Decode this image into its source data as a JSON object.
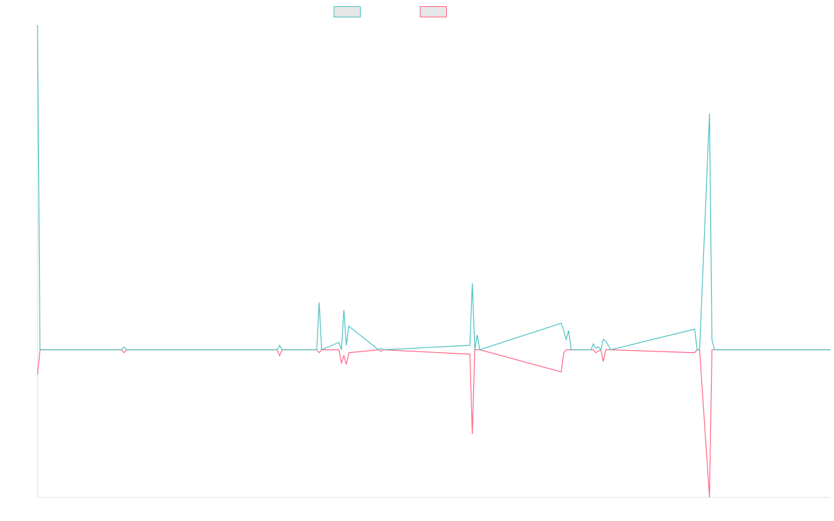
{
  "colors": {
    "series_a": "#4bc0c0",
    "series_b": "#ff6384",
    "axis": "#e0e0e0"
  },
  "chart_data": {
    "type": "line",
    "title": "",
    "xlabel": "",
    "ylabel": "",
    "grid": false,
    "legend_position": "top",
    "x": [
      0,
      1,
      34,
      35,
      36,
      97,
      98,
      99,
      113,
      114,
      115,
      122,
      123,
      124,
      125,
      126,
      138,
      139,
      140,
      175,
      176,
      177,
      178,
      179,
      212,
      213,
      214,
      215,
      216,
      224,
      225,
      226,
      227,
      228,
      229,
      230,
      231,
      232,
      266,
      267,
      268,
      272,
      273,
      274,
      321
    ],
    "xlim": [
      0,
      321
    ],
    "ylim": [
      -1.0,
      2.2
    ],
    "series": [
      {
        "name": "",
        "color": "#4bc0c0",
        "values": [
          2.2,
          0,
          0,
          0.02,
          0,
          0,
          0.03,
          0,
          0,
          0.32,
          0,
          0.05,
          0,
          0.27,
          0.03,
          0.16,
          0,
          0.01,
          0,
          0.03,
          0.45,
          0,
          0.1,
          0,
          0.18,
          0.13,
          0.07,
          0.13,
          0,
          0,
          0.04,
          0.01,
          0.02,
          0,
          0.07,
          0.06,
          0.03,
          0,
          0.14,
          0,
          0,
          1.6,
          0.07,
          0,
          0
        ]
      },
      {
        "name": "",
        "color": "#ff6384",
        "values": [
          -0.17,
          0,
          0,
          -0.02,
          0,
          0,
          -0.04,
          0,
          0,
          -0.02,
          0,
          0,
          -0.09,
          -0.04,
          -0.1,
          -0.02,
          0,
          -0.01,
          0,
          -0.03,
          -0.57,
          0,
          0,
          0,
          -0.15,
          -0.02,
          0,
          0,
          0,
          0,
          0,
          -0.02,
          -0.01,
          0,
          -0.08,
          0,
          0,
          0,
          -0.02,
          0,
          0,
          -1.0,
          0,
          0,
          0
        ]
      }
    ]
  }
}
